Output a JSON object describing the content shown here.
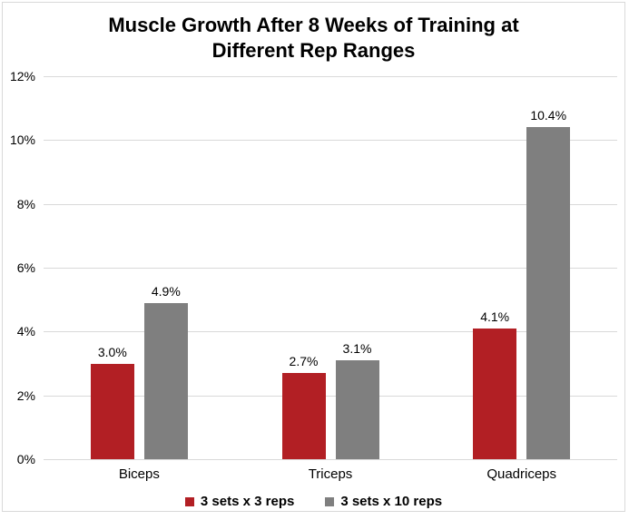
{
  "chart_data": {
    "type": "bar",
    "title": "Muscle Growth After 8 Weeks of Training at Different Rep Ranges",
    "categories": [
      "Biceps",
      "Triceps",
      "Quadriceps"
    ],
    "series": [
      {
        "name": "3 sets x 3 reps",
        "color": "#b21f24",
        "values": [
          3.0,
          2.7,
          4.1
        ],
        "labels": [
          "3.0%",
          "2.7%",
          "4.1%"
        ]
      },
      {
        "name": "3 sets x 10 reps",
        "color": "#7f7f7f",
        "values": [
          4.9,
          3.1,
          10.4
        ],
        "labels": [
          "4.9%",
          "3.1%",
          "10.4%"
        ]
      }
    ],
    "xlabel": "",
    "ylabel": "",
    "ylim": [
      0,
      12
    ],
    "ytick_step": 2,
    "ytick_labels": [
      "0%",
      "2%",
      "4%",
      "6%",
      "8%",
      "10%",
      "12%"
    ],
    "grid": true,
    "legend_position": "bottom",
    "colors": {
      "gridline": "#d9d9d9",
      "frame_border": "#d9d9d9",
      "text": "#000000",
      "background": "#ffffff"
    }
  }
}
